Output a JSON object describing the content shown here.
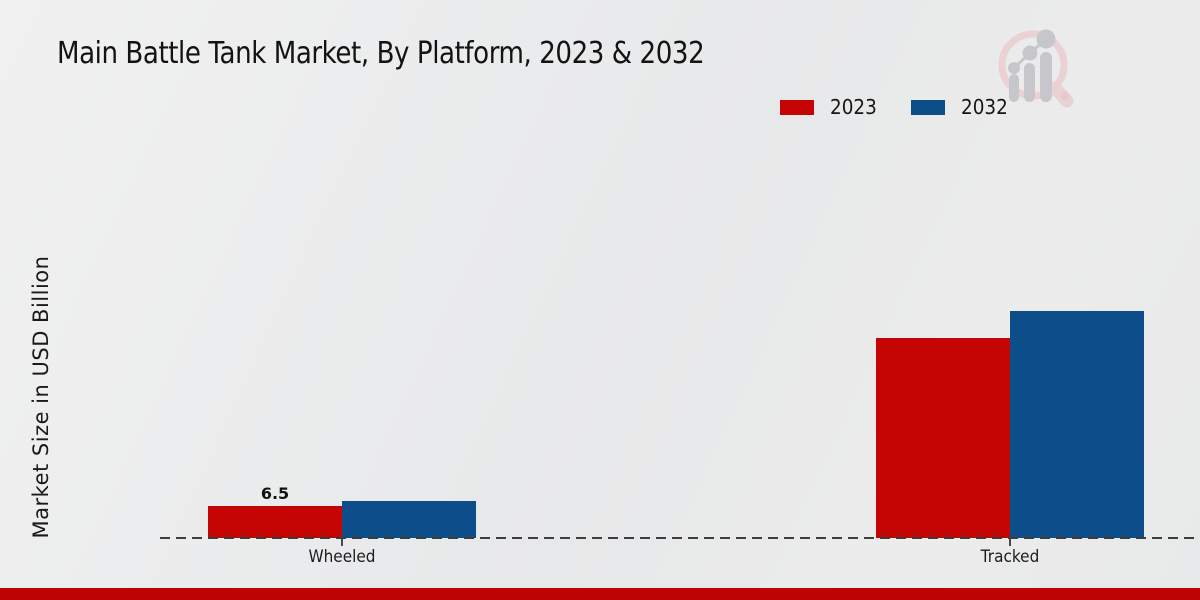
{
  "title": "Main Battle Tank Market, By Platform, 2023 & 2032",
  "ylabel": "Market Size in USD Billion",
  "legend": {
    "items": [
      {
        "label": "2023",
        "color": "#c50404"
      },
      {
        "label": "2032",
        "color": "#0d4d8a"
      }
    ]
  },
  "logo": {
    "name": "magnifier-bar-chart-logo"
  },
  "footer": {
    "bar_color": "#bd0303"
  },
  "chart_data": {
    "type": "bar",
    "title": "Main Battle Tank Market, By Platform, 2023 & 2032",
    "categories": [
      "Wheeled",
      "Tracked"
    ],
    "series": [
      {
        "name": "2023",
        "color": "#c50404",
        "values": [
          6.5,
          40.0
        ],
        "labels": [
          "6.5",
          ""
        ]
      },
      {
        "name": "2032",
        "color": "#0d4d8a",
        "values": [
          7.5,
          45.5
        ],
        "labels": [
          "",
          ""
        ]
      }
    ],
    "xlabel": "",
    "ylabel": "Market Size in USD Billion",
    "ylim": [
      0,
      50
    ],
    "grid": false,
    "legend_position": "top-right",
    "baseline_style": "dashed",
    "value_labels_shown": [
      "Wheeled 2023 = 6.5"
    ]
  }
}
